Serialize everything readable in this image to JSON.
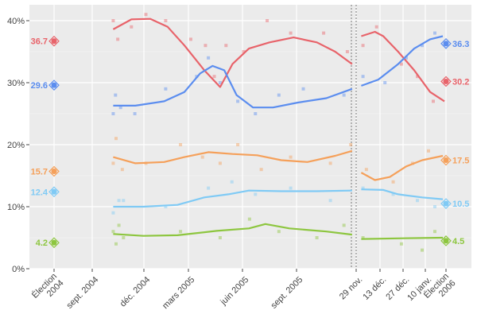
{
  "chart_data": {
    "type": "line",
    "title": "",
    "xlabel": "",
    "ylabel": "",
    "ylim": [
      0,
      42
    ],
    "x_unit": "days since Election 2004",
    "y_ticks": [
      {
        "value": 0,
        "label": "0%"
      },
      {
        "value": 10,
        "label": "10%"
      },
      {
        "value": 20,
        "label": "20%"
      },
      {
        "value": 30,
        "label": "30%"
      },
      {
        "value": 40,
        "label": "40%"
      }
    ],
    "x_ticks": [
      {
        "day": 0,
        "label": "Élection\n2004"
      },
      {
        "day": 65,
        "label": "sept. 2004"
      },
      {
        "day": 156,
        "label": "déc. 2004"
      },
      {
        "day": 246,
        "label": "mars 2005"
      },
      {
        "day": 338,
        "label": "juin 2005"
      },
      {
        "day": 430,
        "label": "sept. 2005"
      },
      {
        "day": 518,
        "label": "29 nov."
      },
      {
        "day": 532,
        "label": "13 déc."
      },
      {
        "day": 546,
        "label": "27 déc."
      },
      {
        "day": 560,
        "label": "10 janv."
      },
      {
        "day": 573,
        "label": "Élection\n2006"
      }
    ],
    "break_day": 518,
    "series": [
      {
        "name": "red",
        "color": "#e8636a",
        "start": {
          "value": 36.7,
          "label": "36.7"
        },
        "end": {
          "value": 30.2,
          "label": "30.2"
        },
        "trend_left": [
          [
            102,
            38.6
          ],
          [
            134,
            40.2
          ],
          [
            169,
            40.3
          ],
          [
            204,
            39
          ],
          [
            238,
            36
          ],
          [
            273,
            32
          ],
          [
            300,
            29.3
          ],
          [
            321,
            33
          ],
          [
            349,
            35.5
          ],
          [
            384,
            36.5
          ],
          [
            425,
            37.3
          ],
          [
            460,
            36.5
          ],
          [
            487,
            35
          ],
          [
            512,
            33
          ]
        ],
        "trend_right": [
          [
            521,
            37.5
          ],
          [
            529,
            38.2
          ],
          [
            534,
            37.5
          ],
          [
            543,
            35
          ],
          [
            553,
            32
          ],
          [
            563,
            28.5
          ],
          [
            572,
            27
          ]
        ],
        "polls": [
          [
            102,
            40
          ],
          [
            110,
            37
          ],
          [
            134,
            39
          ],
          [
            160,
            41
          ],
          [
            200,
            40
          ],
          [
            250,
            37
          ],
          [
            275,
            36
          ],
          [
            290,
            31
          ],
          [
            310,
            36
          ],
          [
            340,
            35
          ],
          [
            380,
            40
          ],
          [
            420,
            38
          ],
          [
            470,
            38
          ],
          [
            505,
            35
          ],
          [
            522,
            36
          ],
          [
            530,
            39
          ],
          [
            545,
            33
          ],
          [
            555,
            31
          ],
          [
            565,
            27
          ]
        ]
      },
      {
        "name": "blue",
        "color": "#5b8def",
        "start": {
          "value": 29.6,
          "label": "29.6"
        },
        "end": {
          "value": 36.3,
          "label": "36.3"
        },
        "trend_left": [
          [
            102,
            26.3
          ],
          [
            141,
            26.3
          ],
          [
            197,
            27
          ],
          [
            238,
            28.5
          ],
          [
            266,
            31.5
          ],
          [
            287,
            32.7
          ],
          [
            307,
            32
          ],
          [
            328,
            28
          ],
          [
            356,
            26
          ],
          [
            390,
            26
          ],
          [
            432,
            26.8
          ],
          [
            474,
            27.5
          ],
          [
            512,
            29
          ]
        ],
        "trend_right": [
          [
            521,
            29.5
          ],
          [
            531,
            30.5
          ],
          [
            543,
            33
          ],
          [
            553,
            35.5
          ],
          [
            563,
            37
          ],
          [
            571,
            37.5
          ]
        ],
        "polls": [
          [
            102,
            25
          ],
          [
            106,
            28
          ],
          [
            115,
            26
          ],
          [
            140,
            25
          ],
          [
            200,
            29
          ],
          [
            260,
            31
          ],
          [
            280,
            34
          ],
          [
            300,
            30
          ],
          [
            330,
            27
          ],
          [
            360,
            25
          ],
          [
            400,
            28
          ],
          [
            440,
            29
          ],
          [
            500,
            28
          ],
          [
            522,
            31
          ],
          [
            535,
            30
          ],
          [
            548,
            34
          ],
          [
            558,
            36
          ],
          [
            566,
            38
          ]
        ]
      },
      {
        "name": "orange",
        "color": "#f5a05a",
        "start": {
          "value": 15.7,
          "label": "15.7"
        },
        "end": {
          "value": 17.5,
          "label": "17.5"
        },
        "trend_left": [
          [
            102,
            18
          ],
          [
            141,
            17
          ],
          [
            197,
            17.2
          ],
          [
            238,
            18
          ],
          [
            280,
            18.8
          ],
          [
            321,
            18.5
          ],
          [
            363,
            18.3
          ],
          [
            404,
            17.5
          ],
          [
            446,
            17.2
          ],
          [
            487,
            18.2
          ],
          [
            512,
            19
          ]
        ],
        "trend_right": [
          [
            521,
            15.5
          ],
          [
            529,
            14.3
          ],
          [
            538,
            14.8
          ],
          [
            548,
            16.5
          ],
          [
            558,
            17.5
          ],
          [
            571,
            18.2
          ]
        ],
        "polls": [
          [
            102,
            17
          ],
          [
            107,
            21
          ],
          [
            118,
            16
          ],
          [
            160,
            17
          ],
          [
            230,
            20
          ],
          [
            270,
            18
          ],
          [
            300,
            17
          ],
          [
            330,
            20
          ],
          [
            370,
            16
          ],
          [
            420,
            18
          ],
          [
            480,
            17
          ],
          [
            510,
            20
          ],
          [
            524,
            16
          ],
          [
            540,
            14
          ],
          [
            552,
            17
          ],
          [
            562,
            19
          ]
        ]
      },
      {
        "name": "light-blue",
        "color": "#7fcaf5",
        "start": {
          "value": 12.4,
          "label": "12.4"
        },
        "end": {
          "value": 10.5,
          "label": "10.5"
        },
        "trend_left": [
          [
            102,
            10
          ],
          [
            155,
            10
          ],
          [
            224,
            10.3
          ],
          [
            273,
            11.5
          ],
          [
            314,
            12
          ],
          [
            349,
            12.6
          ],
          [
            404,
            12.5
          ],
          [
            460,
            12.5
          ],
          [
            512,
            12.6
          ]
        ],
        "trend_right": [
          [
            521,
            12.8
          ],
          [
            534,
            12.7
          ],
          [
            543,
            12
          ],
          [
            558,
            11.5
          ],
          [
            571,
            11.2
          ]
        ],
        "polls": [
          [
            102,
            9
          ],
          [
            112,
            11
          ],
          [
            120,
            11
          ],
          [
            200,
            10
          ],
          [
            280,
            13
          ],
          [
            320,
            14
          ],
          [
            360,
            12
          ],
          [
            420,
            13
          ],
          [
            480,
            11
          ],
          [
            522,
            13
          ],
          [
            540,
            12
          ],
          [
            555,
            11
          ],
          [
            566,
            10
          ]
        ]
      },
      {
        "name": "green",
        "color": "#8dc63f",
        "start": {
          "value": 4.2,
          "label": "4.2"
        },
        "end": {
          "value": 4.5,
          "label": "4.5"
        },
        "trend_left": [
          [
            102,
            5.6
          ],
          [
            155,
            5.3
          ],
          [
            224,
            5.4
          ],
          [
            294,
            6.1
          ],
          [
            349,
            6.5
          ],
          [
            377,
            7.2
          ],
          [
            418,
            6.5
          ],
          [
            474,
            6
          ],
          [
            512,
            5.5
          ]
        ],
        "trend_right": [
          [
            521,
            4.8
          ],
          [
            543,
            4.9
          ],
          [
            571,
            5
          ]
        ],
        "polls": [
          [
            102,
            6
          ],
          [
            107,
            4
          ],
          [
            112,
            7
          ],
          [
            120,
            5
          ],
          [
            230,
            6
          ],
          [
            300,
            5
          ],
          [
            350,
            8
          ],
          [
            400,
            6
          ],
          [
            460,
            5
          ],
          [
            500,
            7
          ],
          [
            522,
            5
          ],
          [
            545,
            4
          ],
          [
            558,
            3
          ],
          [
            566,
            6
          ]
        ]
      }
    ]
  }
}
